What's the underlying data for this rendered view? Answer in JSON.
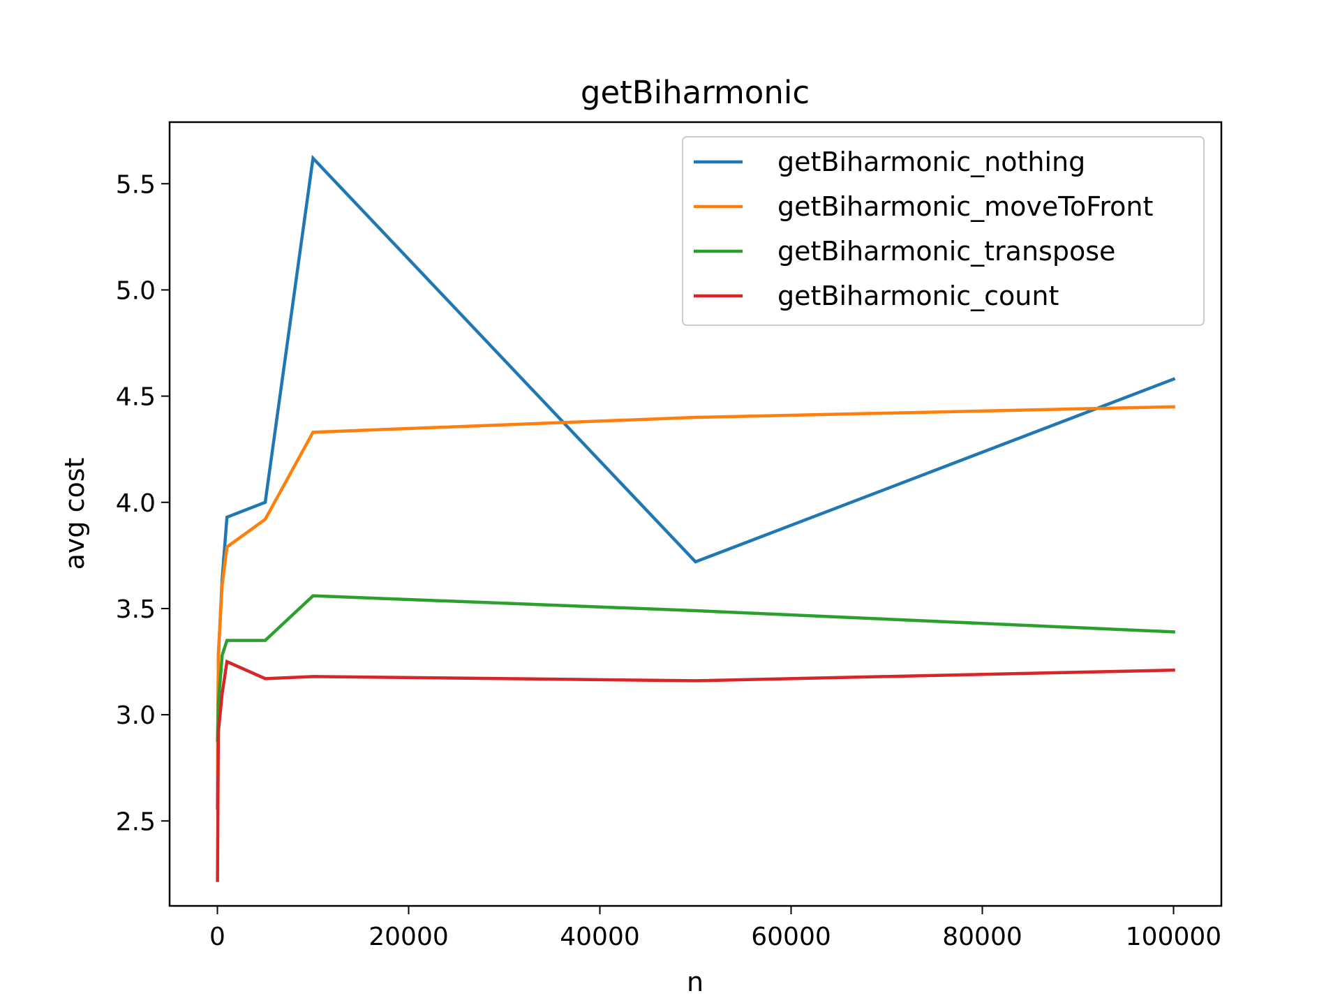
{
  "chart_data": {
    "type": "line",
    "title": "getBiharmonic",
    "xlabel": "n",
    "ylabel": "avg cost",
    "xlim": [
      -5000,
      105000
    ],
    "ylim": [
      2.1,
      5.79
    ],
    "xticks": [
      0,
      20000,
      40000,
      60000,
      80000,
      100000
    ],
    "xtick_labels": [
      "0",
      "20000",
      "40000",
      "60000",
      "80000",
      "100000"
    ],
    "yticks": [
      2.5,
      3.0,
      3.5,
      4.0,
      4.5,
      5.0,
      5.5
    ],
    "ytick_labels": [
      "2.5",
      "3.0",
      "3.5",
      "4.0",
      "4.5",
      "5.0",
      "5.5"
    ],
    "grid": false,
    "legend_position": "top-right",
    "x": [
      10,
      100,
      500,
      1000,
      5000,
      10000,
      50000,
      100000
    ],
    "series": [
      {
        "name": "getBiharmonic_nothing",
        "color": "#1f77b4",
        "values": [
          2.56,
          3.27,
          3.64,
          3.93,
          4.0,
          5.62,
          3.72,
          4.58
        ]
      },
      {
        "name": "getBiharmonic_moveToFront",
        "color": "#ff7f0e",
        "values": [
          2.71,
          3.29,
          3.61,
          3.79,
          3.92,
          4.33,
          4.4,
          4.45
        ]
      },
      {
        "name": "getBiharmonic_transpose",
        "color": "#2ca02c",
        "values": [
          2.88,
          3.05,
          3.28,
          3.35,
          3.35,
          3.56,
          3.49,
          3.39
        ]
      },
      {
        "name": "getBiharmonic_count",
        "color": "#d62728",
        "values": [
          2.22,
          2.92,
          3.1,
          3.25,
          3.17,
          3.18,
          3.16,
          3.21
        ]
      }
    ]
  }
}
